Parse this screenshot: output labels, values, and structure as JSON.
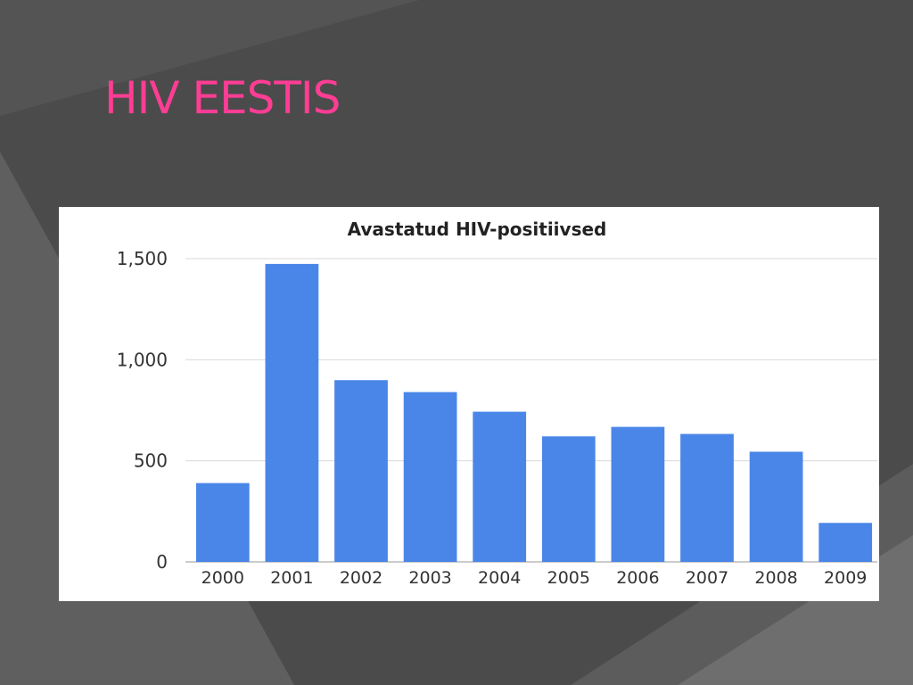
{
  "slide": {
    "title": "HIV EESTIS",
    "title_color": "#ff3d94"
  },
  "chart_data": {
    "type": "bar",
    "title": "Avastatud HIV-positiivsed",
    "categories": [
      "2000",
      "2001",
      "2002",
      "2003",
      "2004",
      "2005",
      "2006",
      "2007",
      "2008",
      "2009"
    ],
    "values": [
      390,
      1474,
      899,
      840,
      743,
      621,
      668,
      633,
      545,
      193
    ],
    "ylim": [
      0,
      1500
    ],
    "yticks": [
      0,
      500,
      1000,
      1500
    ],
    "ytick_labels": [
      "0",
      "500",
      "1,000",
      "1,500"
    ],
    "grid": true,
    "bar_color": "#4a86e8"
  }
}
